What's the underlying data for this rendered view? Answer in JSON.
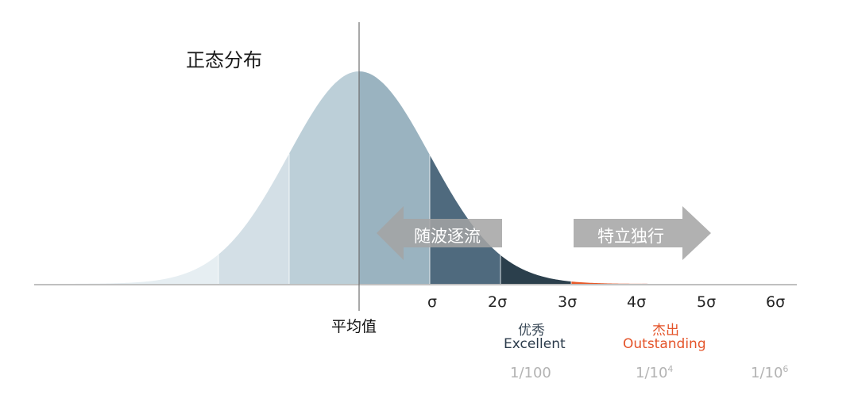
{
  "title": "正态分布",
  "sigma_labels": [
    "σ",
    "2σ",
    "3σ",
    "4σ",
    "5σ",
    "6σ"
  ],
  "mean_label": "平均值",
  "excellent": {
    "zh": "优秀",
    "en": "Excellent"
  },
  "outstanding": {
    "zh": "杰出",
    "en": "Outstanding"
  },
  "ratios": [
    {
      "base": "1/100",
      "exp": ""
    },
    {
      "base": "1/10",
      "exp": "4"
    },
    {
      "base": "1/10",
      "exp": "6"
    }
  ],
  "arrows": {
    "left": "随波逐流",
    "right": "特立独行"
  },
  "colors": {
    "band_outer": "#e6eef2",
    "band_2": "#d3dfe6",
    "band_1": "#bccfd8",
    "band_center": "#9ab3c0",
    "band_sigma": "#4f6a7e",
    "band_2sigma": "#2b3f4c",
    "tail_orange": "#e75a2a",
    "tail_red": "#c8321e",
    "arrow_gray": "#a3a3a3"
  }
}
